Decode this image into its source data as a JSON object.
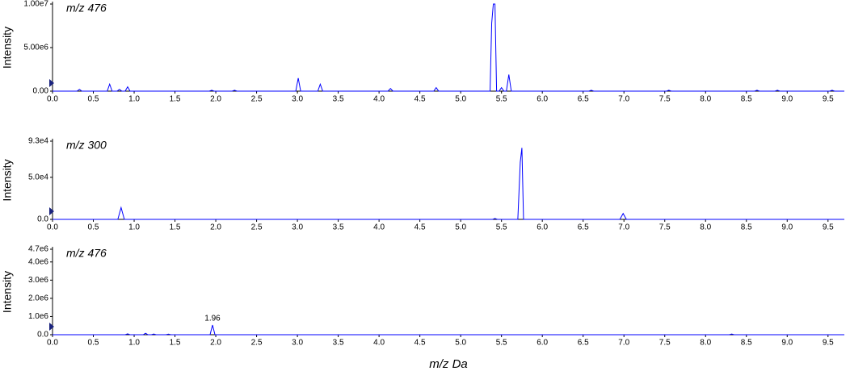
{
  "chart_data": [
    {
      "type": "line",
      "title": "m/z 476",
      "y_label": "Intensity",
      "color": "#0000ff",
      "xlim": [
        0,
        9.7
      ],
      "ylim": [
        0,
        10000000
      ],
      "xticks": [
        {
          "value": 0,
          "label": "0.0"
        },
        {
          "value": 0.5,
          "label": "0.5"
        },
        {
          "value": 1,
          "label": "1.0"
        },
        {
          "value": 1.5,
          "label": "1.5"
        },
        {
          "value": 2,
          "label": "2.0"
        },
        {
          "value": 2.5,
          "label": "2.5"
        },
        {
          "value": 3,
          "label": "3.0"
        },
        {
          "value": 3.5,
          "label": "3.5"
        },
        {
          "value": 4,
          "label": "4.0"
        },
        {
          "value": 4.5,
          "label": "4.5"
        },
        {
          "value": 5,
          "label": "5.0"
        },
        {
          "value": 5.5,
          "label": "5.5"
        },
        {
          "value": 6,
          "label": "6.0"
        },
        {
          "value": 6.5,
          "label": "6.5"
        },
        {
          "value": 7,
          "label": "7.0"
        },
        {
          "value": 7.5,
          "label": "7.5"
        },
        {
          "value": 8,
          "label": "8.0"
        },
        {
          "value": 8.5,
          "label": "8.5"
        },
        {
          "value": 9,
          "label": "9.0"
        },
        {
          "value": 9.5,
          "label": "9.5"
        }
      ],
      "yticks": [
        {
          "value": 0,
          "label": "0.00"
        },
        {
          "value": 5000000,
          "label": "5.00e6"
        },
        {
          "value": 10000000,
          "label": "1.00e7"
        }
      ],
      "x": [
        0,
        0.3,
        0.33,
        0.36,
        0.67,
        0.7,
        0.73,
        0.79,
        0.82,
        0.85,
        0.89,
        0.92,
        0.95,
        1.92,
        1.95,
        1.98,
        2.2,
        2.23,
        2.26,
        2.98,
        3.01,
        3.04,
        3.25,
        3.28,
        3.31,
        4.11,
        4.14,
        4.17,
        4.67,
        4.7,
        4.73,
        5.36,
        5.38,
        5.4,
        5.42,
        5.44,
        5.47,
        5.5,
        5.53,
        5.56,
        5.59,
        5.62,
        6.57,
        6.6,
        6.63,
        7.52,
        7.55,
        7.58,
        8.6,
        8.63,
        8.66,
        8.85,
        8.88,
        8.91,
        9.52,
        9.55,
        9.58,
        9.7
      ],
      "values": [
        0,
        0,
        200000,
        0,
        0,
        800000,
        0,
        0,
        200000,
        0,
        0,
        500000,
        0,
        0,
        100000,
        0,
        0,
        100000,
        0,
        0,
        1500000,
        0,
        0,
        800000,
        0,
        0,
        300000,
        0,
        0,
        400000,
        0,
        0,
        7800000,
        10000000,
        10000000,
        0,
        0,
        400000,
        0,
        0,
        1900000,
        0,
        0,
        100000,
        0,
        0,
        100000,
        0,
        0,
        100000,
        0,
        0,
        100000,
        0,
        0,
        100000,
        0,
        0
      ]
    },
    {
      "type": "line",
      "title": "m/z 300",
      "y_label": "Intensity",
      "color": "#0000ff",
      "xlim": [
        0,
        9.7
      ],
      "ylim": [
        0,
        93000
      ],
      "xticks": [
        {
          "value": 0,
          "label": "0.0"
        },
        {
          "value": 0.5,
          "label": "0.5"
        },
        {
          "value": 1,
          "label": "1.0"
        },
        {
          "value": 1.5,
          "label": "1.5"
        },
        {
          "value": 2,
          "label": "2.0"
        },
        {
          "value": 2.5,
          "label": "2.5"
        },
        {
          "value": 3,
          "label": "3.0"
        },
        {
          "value": 3.5,
          "label": "3.5"
        },
        {
          "value": 4,
          "label": "4.0"
        },
        {
          "value": 4.5,
          "label": "4.5"
        },
        {
          "value": 5,
          "label": "5.0"
        },
        {
          "value": 5.5,
          "label": "5.5"
        },
        {
          "value": 6,
          "label": "6.0"
        },
        {
          "value": 6.5,
          "label": "6.5"
        },
        {
          "value": 7,
          "label": "7.0"
        },
        {
          "value": 7.5,
          "label": "7.5"
        },
        {
          "value": 8,
          "label": "8.0"
        },
        {
          "value": 8.5,
          "label": "8.5"
        },
        {
          "value": 9,
          "label": "9.0"
        },
        {
          "value": 9.5,
          "label": "9.5"
        }
      ],
      "yticks": [
        {
          "value": 0,
          "label": "0.0"
        },
        {
          "value": 50000,
          "label": "5.0e4"
        },
        {
          "value": 93000,
          "label": "9.3e4"
        }
      ],
      "x": [
        0,
        0.8,
        0.84,
        0.88,
        5.39,
        5.42,
        5.45,
        5.7,
        5.73,
        5.75,
        5.77,
        6.95,
        6.99,
        7.03,
        9.7
      ],
      "values": [
        0,
        0,
        14000,
        0,
        0,
        1000,
        0,
        0,
        68000,
        85000,
        0,
        0,
        7000,
        0,
        0
      ]
    },
    {
      "type": "line",
      "title": "m/z 476",
      "y_label": "Intensity",
      "x_label": "m/z Da",
      "color": "#0000ff",
      "xlim": [
        0,
        9.7
      ],
      "ylim": [
        0,
        4700000
      ],
      "xticks": [
        {
          "value": 0,
          "label": "0.0"
        },
        {
          "value": 0.5,
          "label": "0.5"
        },
        {
          "value": 1,
          "label": "1.0"
        },
        {
          "value": 1.5,
          "label": "1.5"
        },
        {
          "value": 2,
          "label": "2.0"
        },
        {
          "value": 2.5,
          "label": "2.5"
        },
        {
          "value": 3,
          "label": "3.0"
        },
        {
          "value": 3.5,
          "label": "3.5"
        },
        {
          "value": 4,
          "label": "4.0"
        },
        {
          "value": 4.5,
          "label": "4.5"
        },
        {
          "value": 5,
          "label": "5.0"
        },
        {
          "value": 5.5,
          "label": "5.5"
        },
        {
          "value": 6,
          "label": "6.0"
        },
        {
          "value": 6.5,
          "label": "6.5"
        },
        {
          "value": 7,
          "label": "7.0"
        },
        {
          "value": 7.5,
          "label": "7.5"
        },
        {
          "value": 8,
          "label": "8.0"
        },
        {
          "value": 8.5,
          "label": "8.5"
        },
        {
          "value": 9,
          "label": "9.0"
        },
        {
          "value": 9.5,
          "label": "9.5"
        }
      ],
      "yticks": [
        {
          "value": 0,
          "label": "0.0"
        },
        {
          "value": 1000000,
          "label": "1.0e6"
        },
        {
          "value": 2000000,
          "label": "2.0e6"
        },
        {
          "value": 3000000,
          "label": "3.0e6"
        },
        {
          "value": 4000000,
          "label": "4.0e6"
        },
        {
          "value": 4700000,
          "label": "4.7e6"
        }
      ],
      "x": [
        0,
        0.89,
        0.92,
        0.95,
        1.11,
        1.14,
        1.17,
        1.21,
        1.24,
        1.27,
        1.39,
        1.42,
        1.45,
        1.93,
        1.96,
        1.99,
        8.29,
        8.32,
        8.35,
        9.7
      ],
      "values": [
        0,
        0,
        50000,
        0,
        0,
        80000,
        0,
        0,
        40000,
        0,
        0,
        30000,
        0,
        0,
        530000,
        0,
        0,
        40000,
        0,
        0
      ],
      "annotations": [
        {
          "text": "1.96",
          "x": 1.96
        }
      ]
    }
  ]
}
